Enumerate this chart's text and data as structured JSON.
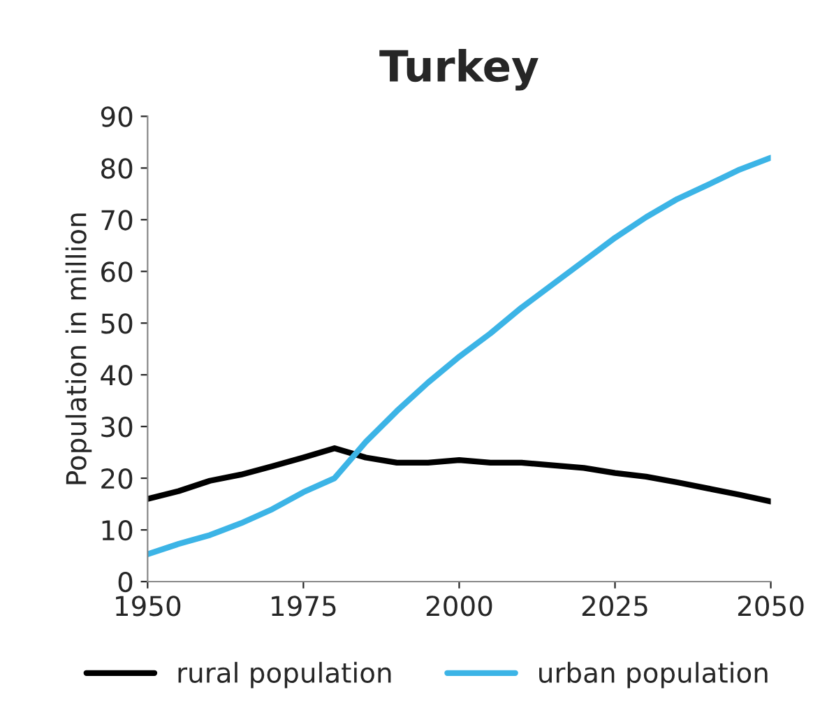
{
  "chart_data": {
    "type": "line",
    "title": "Turkey",
    "ylabel": "Population in million",
    "x": [
      1950,
      1955,
      1960,
      1965,
      1970,
      1975,
      1980,
      1985,
      1990,
      1995,
      2000,
      2005,
      2010,
      2015,
      2020,
      2025,
      2030,
      2035,
      2040,
      2045,
      2050
    ],
    "series": [
      {
        "name": "rural population",
        "color": "#000000",
        "values": [
          16,
          17.5,
          19.5,
          20.7,
          22.3,
          24,
          25.8,
          24,
          23,
          23,
          23.5,
          23,
          23,
          22.5,
          22,
          21,
          20.3,
          19.2,
          18,
          16.8,
          15.5
        ]
      },
      {
        "name": "urban population",
        "color": "#3cb4e6",
        "values": [
          5.3,
          7.3,
          9,
          11.3,
          14,
          17.3,
          20,
          27,
          33,
          38.5,
          43.5,
          48,
          53,
          57.5,
          62,
          66.5,
          70.5,
          74,
          76.8,
          79.7,
          82
        ]
      }
    ],
    "xlim": [
      1950,
      2050
    ],
    "xticks": [
      1950,
      1975,
      2000,
      2025,
      2050
    ],
    "ylim": [
      0,
      90
    ],
    "yticks": [
      0,
      10,
      20,
      30,
      40,
      50,
      60,
      70,
      80,
      90
    ],
    "grid": false,
    "legend": "bottom",
    "marker": "none",
    "line_style": "solid"
  }
}
